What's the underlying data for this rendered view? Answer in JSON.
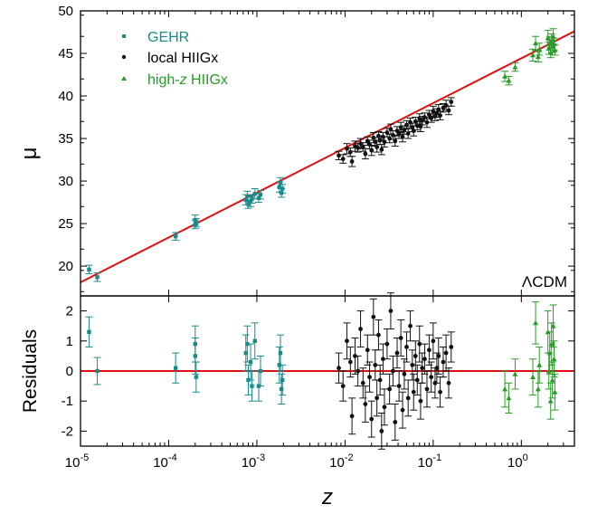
{
  "chart_data": {
    "type": "scatter",
    "colors": {
      "GEHR": "#1a8a8a",
      "local": "#111111",
      "highz": "#2a9a2a",
      "model": "#e01010"
    },
    "xaxis": {
      "label": "z",
      "scale": "log",
      "range": [
        1e-05,
        4
      ],
      "ticks": [
        {
          "value": 1e-05,
          "base": "10",
          "exp": "-5"
        },
        {
          "value": 0.0001,
          "base": "10",
          "exp": "-4"
        },
        {
          "value": 0.001,
          "base": "10",
          "exp": "-3"
        },
        {
          "value": 0.01,
          "base": "10",
          "exp": "-2"
        },
        {
          "value": 0.1,
          "base": "10",
          "exp": "-1"
        },
        {
          "value": 1,
          "base": "10",
          "exp": "0"
        }
      ]
    },
    "top": {
      "ylabel": "μ",
      "ylim": [
        16.5,
        50
      ],
      "yticks": [
        20,
        25,
        30,
        35,
        40,
        45,
        50
      ],
      "annotation": "ΛCDM",
      "model_line": {
        "x": [
          1e-05,
          4
        ],
        "y": [
          18.1,
          47.6
        ]
      }
    },
    "bottom": {
      "ylabel": "Residuals",
      "ylim": [
        -2.5,
        2.5
      ],
      "yticks": [
        -2,
        -1,
        0,
        1,
        2
      ],
      "zero_line": 0
    },
    "legend": {
      "placement": "top-left",
      "entries": [
        {
          "name": "GEHR",
          "marker": "square",
          "color_key": "GEHR"
        },
        {
          "name": "local HIIGx",
          "marker": "circle",
          "color_key": "local"
        },
        {
          "name_prefix": "high-",
          "name_italic": "z",
          "name_suffix": " HIIGx",
          "marker": "triangle",
          "color_key": "highz"
        }
      ]
    },
    "series": [
      {
        "name": "GEHR",
        "marker": "square",
        "color_key": "GEHR",
        "points": [
          {
            "z": 1.25e-05,
            "mu": 19.6,
            "dmu": 0.5,
            "res": 1.3,
            "dres": 0.5
          },
          {
            "z": 1.55e-05,
            "mu": 18.7,
            "dmu": 0.5,
            "res": 0.0,
            "dres": 0.45
          },
          {
            "z": 0.00012,
            "mu": 23.5,
            "dmu": 0.45,
            "res": 0.1,
            "dres": 0.5
          },
          {
            "z": 0.0002,
            "mu": 24.9,
            "dmu": 0.5,
            "res": 0.5,
            "dres": 0.6
          },
          {
            "z": 0.0002,
            "mu": 25.4,
            "dmu": 0.6,
            "res": 0.9,
            "dres": 0.6
          },
          {
            "z": 0.000205,
            "mu": 25.1,
            "dmu": 0.5,
            "res": -0.2,
            "dres": 0.5
          },
          {
            "z": 0.00075,
            "mu": 27.8,
            "dmu": 0.6,
            "res": 0.6,
            "dres": 0.6
          },
          {
            "z": 0.00078,
            "mu": 28.2,
            "dmu": 0.6,
            "res": 0.9,
            "dres": 0.6
          },
          {
            "z": 0.0008,
            "mu": 27.3,
            "dmu": 0.5,
            "res": -0.3,
            "dres": 0.5
          },
          {
            "z": 0.00085,
            "mu": 27.6,
            "dmu": 0.6,
            "res": 0.3,
            "dres": 0.6
          },
          {
            "z": 0.00088,
            "mu": 27.9,
            "dmu": 0.5,
            "res": -0.5,
            "dres": 0.5
          },
          {
            "z": 0.00095,
            "mu": 28.5,
            "dmu": 0.6,
            "res": 1.0,
            "dres": 0.6
          },
          {
            "z": 0.00105,
            "mu": 28.0,
            "dmu": 0.5,
            "res": -0.5,
            "dres": 0.5
          },
          {
            "z": 0.0011,
            "mu": 28.4,
            "dmu": 0.5,
            "res": 0.0,
            "dres": 0.5
          },
          {
            "z": 0.0018,
            "mu": 29.3,
            "dmu": 0.6,
            "res": 0.2,
            "dres": 0.6
          },
          {
            "z": 0.00185,
            "mu": 29.8,
            "dmu": 0.6,
            "res": 0.6,
            "dres": 0.6
          },
          {
            "z": 0.0019,
            "mu": 28.6,
            "dmu": 0.5,
            "res": -0.6,
            "dres": 0.5
          },
          {
            "z": 0.00195,
            "mu": 29.1,
            "dmu": 0.5,
            "res": -0.3,
            "dres": 0.5
          }
        ]
      },
      {
        "name": "local HIIGx",
        "marker": "circle",
        "color_key": "local",
        "points": [
          {
            "z": 0.0085,
            "mu": 33.0,
            "dmu": 0.5,
            "res": 0.1,
            "dres": 0.5
          },
          {
            "z": 0.0095,
            "mu": 32.6,
            "dmu": 0.5,
            "res": -0.5,
            "dres": 0.5
          },
          {
            "z": 0.0105,
            "mu": 33.8,
            "dmu": 0.6,
            "res": 1.0,
            "dres": 0.6
          },
          {
            "z": 0.0115,
            "mu": 33.4,
            "dmu": 0.5,
            "res": 0.3,
            "dres": 0.5
          },
          {
            "z": 0.012,
            "mu": 32.3,
            "dmu": 0.6,
            "res": -1.5,
            "dres": 0.6
          },
          {
            "z": 0.013,
            "mu": 34.1,
            "dmu": 0.6,
            "res": 0.5,
            "dres": 0.6
          },
          {
            "z": 0.014,
            "mu": 33.9,
            "dmu": 0.5,
            "res": 0.0,
            "dres": 0.5
          },
          {
            "z": 0.015,
            "mu": 34.4,
            "dmu": 0.6,
            "res": 1.4,
            "dres": 0.6
          },
          {
            "z": 0.016,
            "mu": 34.0,
            "dmu": 0.5,
            "res": -0.4,
            "dres": 0.5
          },
          {
            "z": 0.017,
            "mu": 33.2,
            "dmu": 0.6,
            "res": -1.1,
            "dres": 0.6
          },
          {
            "z": 0.018,
            "mu": 34.7,
            "dmu": 0.5,
            "res": 0.7,
            "dres": 0.5
          },
          {
            "z": 0.019,
            "mu": 34.3,
            "dmu": 0.5,
            "res": -0.2,
            "dres": 0.5
          },
          {
            "z": 0.02,
            "mu": 33.6,
            "dmu": 0.6,
            "res": -1.6,
            "dres": 0.6
          },
          {
            "z": 0.021,
            "mu": 35.1,
            "dmu": 0.6,
            "res": 1.8,
            "dres": 0.6
          },
          {
            "z": 0.022,
            "mu": 34.6,
            "dmu": 0.5,
            "res": 0.2,
            "dres": 0.5
          },
          {
            "z": 0.023,
            "mu": 34.0,
            "dmu": 0.6,
            "res": -0.9,
            "dres": 0.6
          },
          {
            "z": 0.024,
            "mu": 35.3,
            "dmu": 0.5,
            "res": 1.2,
            "dres": 0.5
          },
          {
            "z": 0.025,
            "mu": 34.8,
            "dmu": 0.5,
            "res": -0.3,
            "dres": 0.5
          },
          {
            "z": 0.026,
            "mu": 33.7,
            "dmu": 0.6,
            "res": -2.0,
            "dres": 0.6
          },
          {
            "z": 0.027,
            "mu": 35.2,
            "dmu": 0.5,
            "res": 0.4,
            "dres": 0.5
          },
          {
            "z": 0.028,
            "mu": 34.6,
            "dmu": 0.6,
            "res": -1.2,
            "dres": 0.6
          },
          {
            "z": 0.03,
            "mu": 35.7,
            "dmu": 0.5,
            "res": 0.9,
            "dres": 0.5
          },
          {
            "z": 0.032,
            "mu": 35.0,
            "dmu": 0.5,
            "res": -0.6,
            "dres": 0.5
          },
          {
            "z": 0.033,
            "mu": 36.1,
            "dmu": 0.6,
            "res": 2.0,
            "dres": 0.6
          },
          {
            "z": 0.035,
            "mu": 35.4,
            "dmu": 0.5,
            "res": 0.0,
            "dres": 0.5
          },
          {
            "z": 0.037,
            "mu": 34.7,
            "dmu": 0.6,
            "res": -1.7,
            "dres": 0.6
          },
          {
            "z": 0.039,
            "mu": 35.9,
            "dmu": 0.5,
            "res": 0.6,
            "dres": 0.5
          },
          {
            "z": 0.041,
            "mu": 35.5,
            "dmu": 0.5,
            "res": -0.5,
            "dres": 0.5
          },
          {
            "z": 0.043,
            "mu": 36.3,
            "dmu": 0.6,
            "res": 1.1,
            "dres": 0.6
          },
          {
            "z": 0.045,
            "mu": 35.2,
            "dmu": 0.6,
            "res": -1.3,
            "dres": 0.6
          },
          {
            "z": 0.047,
            "mu": 36.0,
            "dmu": 0.5,
            "res": -0.1,
            "dres": 0.5
          },
          {
            "z": 0.05,
            "mu": 36.6,
            "dmu": 0.5,
            "res": 0.8,
            "dres": 0.5
          },
          {
            "z": 0.052,
            "mu": 35.6,
            "dmu": 0.6,
            "res": -0.9,
            "dres": 0.6
          },
          {
            "z": 0.055,
            "mu": 36.9,
            "dmu": 0.5,
            "res": 1.5,
            "dres": 0.5
          },
          {
            "z": 0.058,
            "mu": 36.3,
            "dmu": 0.5,
            "res": 0.2,
            "dres": 0.5
          },
          {
            "z": 0.06,
            "mu": 35.9,
            "dmu": 0.6,
            "res": -0.7,
            "dres": 0.6
          },
          {
            "z": 0.063,
            "mu": 37.0,
            "dmu": 0.5,
            "res": 0.5,
            "dres": 0.5
          },
          {
            "z": 0.066,
            "mu": 36.5,
            "dmu": 0.5,
            "res": -0.3,
            "dres": 0.5
          },
          {
            "z": 0.07,
            "mu": 37.3,
            "dmu": 0.6,
            "res": 0.9,
            "dres": 0.6
          },
          {
            "z": 0.072,
            "mu": 36.4,
            "dmu": 0.6,
            "res": -1.0,
            "dres": 0.6
          },
          {
            "z": 0.075,
            "mu": 37.1,
            "dmu": 0.5,
            "res": 0.1,
            "dres": 0.5
          },
          {
            "z": 0.08,
            "mu": 37.5,
            "dmu": 0.5,
            "res": 0.4,
            "dres": 0.5
          },
          {
            "z": 0.085,
            "mu": 36.9,
            "dmu": 0.6,
            "res": -0.6,
            "dres": 0.6
          },
          {
            "z": 0.09,
            "mu": 37.8,
            "dmu": 0.5,
            "res": 0.7,
            "dres": 0.5
          },
          {
            "z": 0.095,
            "mu": 37.4,
            "dmu": 0.5,
            "res": -0.2,
            "dres": 0.5
          },
          {
            "z": 0.1,
            "mu": 38.2,
            "dmu": 0.6,
            "res": 1.0,
            "dres": 0.6
          },
          {
            "z": 0.105,
            "mu": 37.6,
            "dmu": 0.5,
            "res": -0.4,
            "dres": 0.5
          },
          {
            "z": 0.11,
            "mu": 38.0,
            "dmu": 0.5,
            "res": 0.1,
            "dres": 0.5
          },
          {
            "z": 0.115,
            "mu": 38.4,
            "dmu": 0.6,
            "res": 0.5,
            "dres": 0.6
          },
          {
            "z": 0.12,
            "mu": 37.7,
            "dmu": 0.5,
            "res": -0.7,
            "dres": 0.5
          },
          {
            "z": 0.13,
            "mu": 38.6,
            "dmu": 0.5,
            "res": 0.3,
            "dres": 0.5
          },
          {
            "z": 0.14,
            "mu": 38.9,
            "dmu": 0.6,
            "res": 0.6,
            "dres": 0.6
          },
          {
            "z": 0.15,
            "mu": 38.3,
            "dmu": 0.5,
            "res": -0.4,
            "dres": 0.5
          },
          {
            "z": 0.16,
            "mu": 39.3,
            "dmu": 0.5,
            "res": 0.8,
            "dres": 0.5
          }
        ]
      },
      {
        "name": "high-z HIIGx",
        "marker": "triangle",
        "color_key": "highz",
        "points": [
          {
            "z": 0.65,
            "mu": 42.3,
            "dmu": 0.6,
            "res": -0.6,
            "dres": 0.6
          },
          {
            "z": 0.72,
            "mu": 41.8,
            "dmu": 0.5,
            "res": -0.9,
            "dres": 0.5
          },
          {
            "z": 0.85,
            "mu": 43.4,
            "dmu": 0.5,
            "res": -0.1,
            "dres": 0.5
          },
          {
            "z": 1.35,
            "mu": 44.8,
            "dmu": 0.7,
            "res": -0.2,
            "dres": 0.6
          },
          {
            "z": 1.45,
            "mu": 46.2,
            "dmu": 0.8,
            "res": 1.6,
            "dres": 0.7
          },
          {
            "z": 1.55,
            "mu": 44.6,
            "dmu": 0.6,
            "res": -0.6,
            "dres": 0.6
          },
          {
            "z": 1.6,
            "mu": 45.5,
            "dmu": 0.7,
            "res": 0.2,
            "dres": 0.6
          },
          {
            "z": 2.0,
            "mu": 46.8,
            "dmu": 0.9,
            "res": 1.3,
            "dres": 0.7
          },
          {
            "z": 2.05,
            "mu": 45.6,
            "dmu": 0.7,
            "res": 0.0,
            "dres": 0.6
          },
          {
            "z": 2.1,
            "mu": 46.2,
            "dmu": 0.8,
            "res": 0.6,
            "dres": 0.7
          },
          {
            "z": 2.15,
            "mu": 45.1,
            "dmu": 0.6,
            "res": -1.0,
            "dres": 0.6
          },
          {
            "z": 2.2,
            "mu": 46.5,
            "dmu": 0.8,
            "res": 0.9,
            "dres": 0.7
          },
          {
            "z": 2.25,
            "mu": 45.8,
            "dmu": 0.7,
            "res": -0.3,
            "dres": 0.6
          },
          {
            "z": 2.3,
            "mu": 47.0,
            "dmu": 0.9,
            "res": 1.5,
            "dres": 0.7
          },
          {
            "z": 2.35,
            "mu": 46.1,
            "dmu": 0.7,
            "res": 0.4,
            "dres": 0.6
          },
          {
            "z": 2.4,
            "mu": 45.4,
            "dmu": 0.6,
            "res": -0.7,
            "dres": 0.6
          }
        ]
      }
    ]
  }
}
